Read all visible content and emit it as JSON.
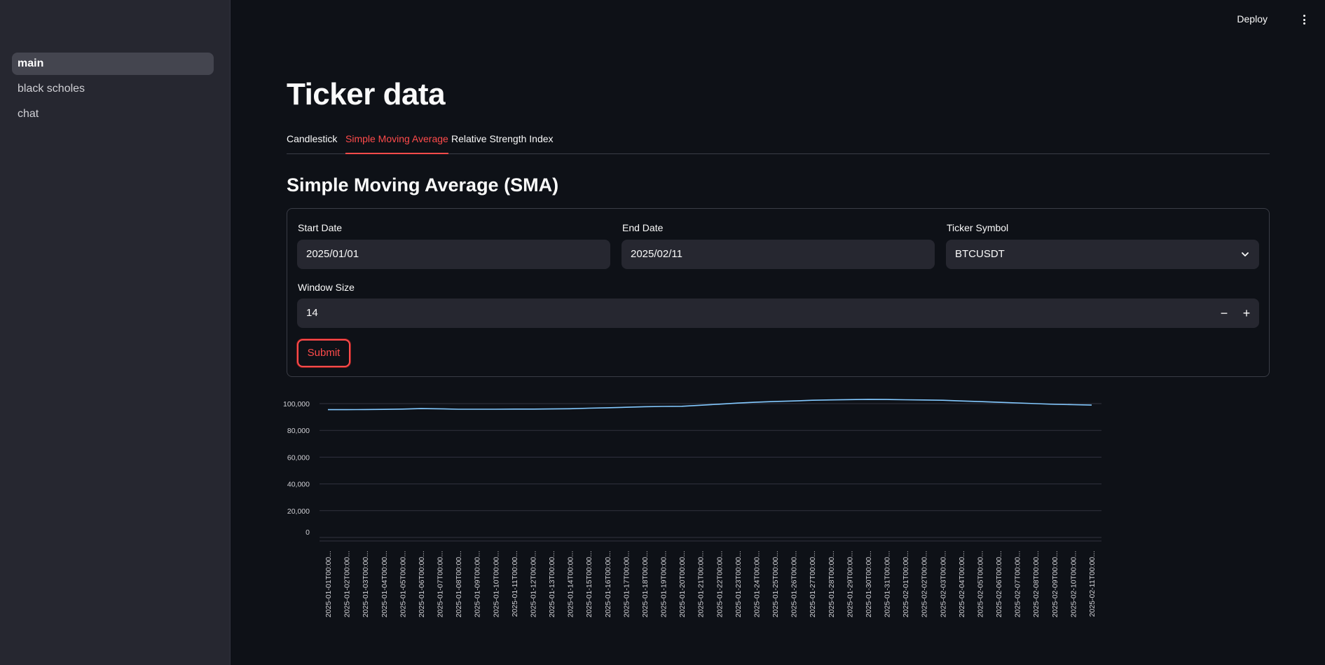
{
  "sidebar": {
    "items": [
      {
        "label": "main",
        "active": true
      },
      {
        "label": "black scholes",
        "active": false
      },
      {
        "label": "chat",
        "active": false
      }
    ]
  },
  "topbar": {
    "deploy_label": "Deploy",
    "menu_icon": "more-vertical-icon"
  },
  "page": {
    "title": "Ticker data"
  },
  "tabs": [
    {
      "label": "Candlestick",
      "active": false
    },
    {
      "label": "Simple Moving Average",
      "active": true
    },
    {
      "label": "Relative Strength Index",
      "active": false
    }
  ],
  "section": {
    "title": "Simple Moving Average (SMA)"
  },
  "form": {
    "start_date": {
      "label": "Start Date",
      "value": "2025/01/01"
    },
    "end_date": {
      "label": "End Date",
      "value": "2025/02/11"
    },
    "ticker": {
      "label": "Ticker Symbol",
      "value": "BTCUSDT"
    },
    "window": {
      "label": "Window Size",
      "value": "14",
      "minus": "−",
      "plus": "+"
    },
    "submit_label": "Submit"
  },
  "colors": {
    "accent": "#ff4b4b",
    "line": "#83c9ff",
    "background": "#0e1117",
    "sidebar": "#262730"
  },
  "chart_data": {
    "type": "line",
    "ylim": [
      0,
      105000
    ],
    "yticks": [
      0,
      20000,
      40000,
      60000,
      80000,
      100000
    ],
    "ytick_labels": [
      "0",
      "20,000",
      "40,000",
      "60,000",
      "80,000",
      "100,000"
    ],
    "x": [
      "2025-01-01T00:00...",
      "2025-01-02T00:00...",
      "2025-01-03T00:00...",
      "2025-01-04T00:00...",
      "2025-01-05T00:00...",
      "2025-01-06T00:00...",
      "2025-01-07T00:00...",
      "2025-01-08T00:00...",
      "2025-01-09T00:00...",
      "2025-01-10T00:00...",
      "2025-01-11T00:00...",
      "2025-01-12T00:00...",
      "2025-01-13T00:00...",
      "2025-01-14T00:00...",
      "2025-01-15T00:00...",
      "2025-01-16T00:00...",
      "2025-01-17T00:00...",
      "2025-01-18T00:00...",
      "2025-01-19T00:00...",
      "2025-01-20T00:00...",
      "2025-01-21T00:00...",
      "2025-01-22T00:00...",
      "2025-01-23T00:00...",
      "2025-01-24T00:00...",
      "2025-01-25T00:00...",
      "2025-01-26T00:00...",
      "2025-01-27T00:00...",
      "2025-01-28T00:00...",
      "2025-01-29T00:00...",
      "2025-01-30T00:00...",
      "2025-01-31T00:00...",
      "2025-02-01T00:00...",
      "2025-02-02T00:00...",
      "2025-02-03T00:00...",
      "2025-02-04T00:00...",
      "2025-02-05T00:00...",
      "2025-02-06T00:00...",
      "2025-02-07T00:00...",
      "2025-02-08T00:00...",
      "2025-02-09T00:00...",
      "2025-02-10T00:00...",
      "2025-02-11T00:00..."
    ],
    "series": [
      {
        "values": [
          95500,
          95500,
          95600,
          95700,
          95900,
          96300,
          96100,
          95800,
          95800,
          95800,
          95900,
          95900,
          96000,
          96200,
          96600,
          96900,
          97300,
          97700,
          97900,
          98000,
          98800,
          99600,
          100400,
          101100,
          101600,
          102000,
          102500,
          102800,
          103000,
          103200,
          103100,
          102900,
          102700,
          102500,
          102000,
          101500,
          101000,
          100500,
          100000,
          99500,
          99200,
          98900
        ]
      }
    ],
    "grid": true,
    "legend": "none"
  }
}
